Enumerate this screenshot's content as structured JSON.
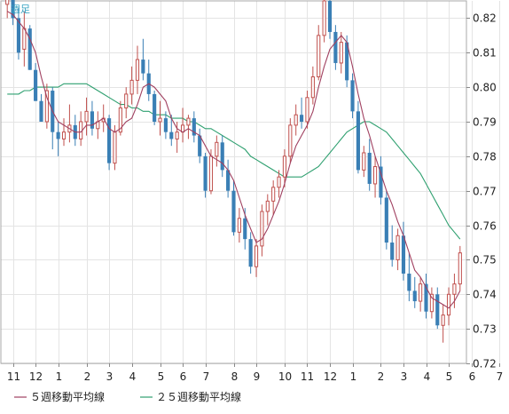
{
  "period_label": "週足",
  "legend": [
    {
      "label": "５週移動平均線",
      "color": "#a04060"
    },
    {
      "label": "２５週移動平均線",
      "color": "#2fa070"
    }
  ],
  "colors": {
    "up": "#c0504d",
    "down": "#3a7fb5",
    "grid": "#e4e4e4",
    "axis": "#888888",
    "text": "#222222",
    "period": "#30a0c0"
  },
  "chart_data": {
    "type": "candlestick",
    "ylim": [
      0.72,
      0.825
    ],
    "y_ticks": [
      "0.72",
      "0.73",
      "0.74",
      "0.75",
      "0.76",
      "0.77",
      "0.78",
      "0.79",
      "0.80",
      "0.81",
      "0.82"
    ],
    "x_ticks": [
      {
        "label": "11",
        "index": 1
      },
      {
        "label": "12",
        "index": 5
      },
      {
        "label": "1",
        "index": 9
      },
      {
        "label": "2",
        "index": 14
      },
      {
        "label": "3",
        "index": 18
      },
      {
        "label": "4",
        "index": 22
      },
      {
        "label": "5",
        "index": 27
      },
      {
        "label": "6",
        "index": 31
      },
      {
        "label": "7",
        "index": 35
      },
      {
        "label": "8",
        "index": 40
      },
      {
        "label": "9",
        "index": 44
      },
      {
        "label": "10",
        "index": 49
      },
      {
        "label": "11",
        "index": 53
      },
      {
        "label": "12",
        "index": 57
      },
      {
        "label": "1",
        "index": 61
      },
      {
        "label": "2",
        "index": 66
      },
      {
        "label": "3",
        "index": 70
      },
      {
        "label": "4",
        "index": 74
      },
      {
        "label": "5",
        "index": 78
      },
      {
        "label": "6",
        "index": 82
      },
      {
        "label": "7",
        "index": 87
      }
    ],
    "candles": [
      [
        0.824,
        0.828,
        0.82,
        0.826
      ],
      [
        0.826,
        0.828,
        0.818,
        0.82
      ],
      [
        0.82,
        0.823,
        0.808,
        0.81
      ],
      [
        0.811,
        0.822,
        0.806,
        0.817
      ],
      [
        0.817,
        0.818,
        0.805,
        0.805
      ],
      [
        0.805,
        0.807,
        0.796,
        0.796
      ],
      [
        0.796,
        0.798,
        0.79,
        0.79
      ],
      [
        0.79,
        0.801,
        0.788,
        0.799
      ],
      [
        0.799,
        0.8,
        0.782,
        0.787
      ],
      [
        0.787,
        0.79,
        0.78,
        0.785
      ],
      [
        0.785,
        0.791,
        0.783,
        0.787
      ],
      [
        0.787,
        0.795,
        0.784,
        0.789
      ],
      [
        0.789,
        0.792,
        0.783,
        0.785
      ],
      [
        0.785,
        0.793,
        0.783,
        0.79
      ],
      [
        0.79,
        0.797,
        0.786,
        0.793
      ],
      [
        0.793,
        0.796,
        0.786,
        0.788
      ],
      [
        0.788,
        0.793,
        0.785,
        0.79
      ],
      [
        0.79,
        0.795,
        0.787,
        0.791
      ],
      [
        0.791,
        0.792,
        0.776,
        0.778
      ],
      [
        0.778,
        0.789,
        0.776,
        0.787
      ],
      [
        0.787,
        0.796,
        0.786,
        0.794
      ],
      [
        0.794,
        0.8,
        0.791,
        0.798
      ],
      [
        0.798,
        0.806,
        0.795,
        0.802
      ],
      [
        0.802,
        0.812,
        0.798,
        0.808
      ],
      [
        0.808,
        0.814,
        0.802,
        0.804
      ],
      [
        0.804,
        0.808,
        0.796,
        0.798
      ],
      [
        0.798,
        0.799,
        0.789,
        0.79
      ],
      [
        0.79,
        0.796,
        0.786,
        0.791
      ],
      [
        0.791,
        0.793,
        0.785,
        0.787
      ],
      [
        0.787,
        0.792,
        0.783,
        0.785
      ],
      [
        0.785,
        0.79,
        0.781,
        0.787
      ],
      [
        0.787,
        0.794,
        0.784,
        0.789
      ],
      [
        0.789,
        0.792,
        0.785,
        0.791
      ],
      [
        0.791,
        0.793,
        0.784,
        0.786
      ],
      [
        0.786,
        0.788,
        0.778,
        0.78
      ],
      [
        0.78,
        0.781,
        0.768,
        0.77
      ],
      [
        0.77,
        0.782,
        0.769,
        0.78
      ],
      [
        0.78,
        0.786,
        0.777,
        0.784
      ],
      [
        0.784,
        0.786,
        0.774,
        0.776
      ],
      [
        0.776,
        0.779,
        0.768,
        0.77
      ],
      [
        0.77,
        0.773,
        0.757,
        0.758
      ],
      [
        0.758,
        0.765,
        0.755,
        0.762
      ],
      [
        0.762,
        0.765,
        0.753,
        0.756
      ],
      [
        0.756,
        0.758,
        0.746,
        0.748
      ],
      [
        0.748,
        0.756,
        0.745,
        0.754
      ],
      [
        0.754,
        0.766,
        0.751,
        0.764
      ],
      [
        0.764,
        0.769,
        0.76,
        0.767
      ],
      [
        0.767,
        0.773,
        0.763,
        0.771
      ],
      [
        0.771,
        0.776,
        0.768,
        0.774
      ],
      [
        0.774,
        0.782,
        0.771,
        0.78
      ],
      [
        0.78,
        0.791,
        0.778,
        0.789
      ],
      [
        0.789,
        0.795,
        0.786,
        0.792
      ],
      [
        0.792,
        0.797,
        0.788,
        0.79
      ],
      [
        0.79,
        0.799,
        0.788,
        0.797
      ],
      [
        0.797,
        0.806,
        0.795,
        0.803
      ],
      [
        0.803,
        0.818,
        0.802,
        0.815
      ],
      [
        0.815,
        0.828,
        0.813,
        0.825
      ],
      [
        0.825,
        0.827,
        0.814,
        0.816
      ],
      [
        0.816,
        0.818,
        0.805,
        0.807
      ],
      [
        0.807,
        0.816,
        0.804,
        0.813
      ],
      [
        0.813,
        0.815,
        0.8,
        0.802
      ],
      [
        0.802,
        0.804,
        0.791,
        0.793
      ],
      [
        0.793,
        0.796,
        0.775,
        0.776
      ],
      [
        0.776,
        0.783,
        0.774,
        0.781
      ],
      [
        0.781,
        0.785,
        0.77,
        0.772
      ],
      [
        0.772,
        0.78,
        0.768,
        0.777
      ],
      [
        0.777,
        0.78,
        0.766,
        0.768
      ],
      [
        0.768,
        0.77,
        0.753,
        0.755
      ],
      [
        0.755,
        0.76,
        0.748,
        0.75
      ],
      [
        0.75,
        0.759,
        0.747,
        0.757
      ],
      [
        0.757,
        0.761,
        0.744,
        0.746
      ],
      [
        0.746,
        0.752,
        0.738,
        0.741
      ],
      [
        0.741,
        0.745,
        0.736,
        0.738
      ],
      [
        0.738,
        0.745,
        0.735,
        0.743
      ],
      [
        0.743,
        0.746,
        0.733,
        0.735
      ],
      [
        0.735,
        0.742,
        0.733,
        0.74
      ],
      [
        0.74,
        0.742,
        0.73,
        0.731
      ],
      [
        0.731,
        0.737,
        0.726,
        0.734
      ],
      [
        0.734,
        0.742,
        0.731,
        0.74
      ],
      [
        0.74,
        0.746,
        0.736,
        0.743
      ],
      [
        0.743,
        0.754,
        0.741,
        0.752
      ]
    ],
    "ma5": [
      0.822,
      0.821,
      0.819,
      0.817,
      0.814,
      0.81,
      0.803,
      0.797,
      0.793,
      0.79,
      0.789,
      0.788,
      0.787,
      0.787,
      0.789,
      0.789,
      0.79,
      0.791,
      0.788,
      0.787,
      0.788,
      0.79,
      0.791,
      0.795,
      0.8,
      0.801,
      0.8,
      0.798,
      0.796,
      0.791,
      0.788,
      0.787,
      0.788,
      0.787,
      0.786,
      0.783,
      0.78,
      0.779,
      0.778,
      0.776,
      0.773,
      0.768,
      0.763,
      0.759,
      0.755,
      0.756,
      0.759,
      0.763,
      0.767,
      0.772,
      0.778,
      0.783,
      0.786,
      0.789,
      0.793,
      0.8,
      0.806,
      0.811,
      0.813,
      0.815,
      0.813,
      0.806,
      0.798,
      0.791,
      0.786,
      0.78,
      0.775,
      0.77,
      0.766,
      0.761,
      0.757,
      0.752,
      0.747,
      0.745,
      0.742,
      0.739,
      0.738,
      0.737,
      0.736,
      0.738,
      0.741
    ],
    "ma25": [
      0.798,
      0.798,
      0.798,
      0.799,
      0.799,
      0.8,
      0.8,
      0.8,
      0.8,
      0.8,
      0.801,
      0.801,
      0.801,
      0.801,
      0.801,
      0.8,
      0.799,
      0.798,
      0.797,
      0.796,
      0.795,
      0.795,
      0.794,
      0.794,
      0.793,
      0.793,
      0.792,
      0.792,
      0.792,
      0.791,
      0.791,
      0.791,
      0.79,
      0.79,
      0.789,
      0.788,
      0.788,
      0.787,
      0.786,
      0.785,
      0.784,
      0.783,
      0.782,
      0.78,
      0.779,
      0.778,
      0.777,
      0.776,
      0.775,
      0.774,
      0.774,
      0.774,
      0.774,
      0.775,
      0.776,
      0.777,
      0.779,
      0.781,
      0.783,
      0.785,
      0.787,
      0.788,
      0.789,
      0.79,
      0.79,
      0.789,
      0.788,
      0.787,
      0.785,
      0.783,
      0.781,
      0.779,
      0.777,
      0.775,
      0.772,
      0.769,
      0.766,
      0.763,
      0.76,
      0.758,
      0.756
    ]
  }
}
